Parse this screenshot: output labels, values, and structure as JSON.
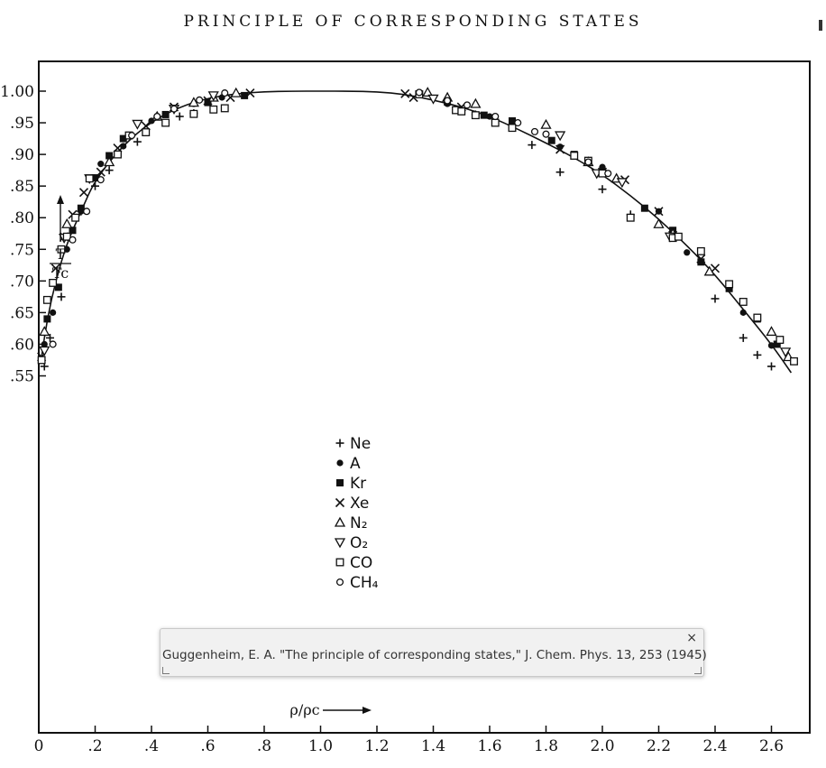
{
  "header": {
    "title": "PRINCIPLE OF CORRESPONDING STATES"
  },
  "tooltip": {
    "close_glyph": "×",
    "text": "Guggenheim, E. A. \"The principle of corresponding states,\" J. Chem. Phys. 13, 253 (1945)"
  },
  "chart_data": {
    "type": "scatter",
    "title": "",
    "xlabel": "ρ/ρc",
    "ylabel": "T/Tc",
    "xlim": [
      0,
      2.75
    ],
    "ylim": [
      0.55,
      1.02
    ],
    "grid": false,
    "legend_position": "center",
    "x_ticks": [
      {
        "value": 0.0,
        "label": "0"
      },
      {
        "value": 0.2,
        "label": ".2"
      },
      {
        "value": 0.4,
        "label": ".4"
      },
      {
        "value": 0.6,
        "label": ".6"
      },
      {
        "value": 0.8,
        "label": ".8"
      },
      {
        "value": 1.0,
        "label": "1.0"
      },
      {
        "value": 1.2,
        "label": "1.2"
      },
      {
        "value": 1.4,
        "label": "1.4"
      },
      {
        "value": 1.6,
        "label": "1.6"
      },
      {
        "value": 1.8,
        "label": "1.8"
      },
      {
        "value": 2.0,
        "label": "2.0"
      },
      {
        "value": 2.2,
        "label": "2.2"
      },
      {
        "value": 2.4,
        "label": "2.4"
      },
      {
        "value": 2.6,
        "label": "2.6"
      }
    ],
    "y_ticks": [
      {
        "value": 0.55,
        "label": ".55"
      },
      {
        "value": 0.6,
        "label": ".60"
      },
      {
        "value": 0.65,
        "label": ".65"
      },
      {
        "value": 0.7,
        "label": ".70"
      },
      {
        "value": 0.75,
        "label": ".75"
      },
      {
        "value": 0.8,
        "label": ".80"
      },
      {
        "value": 0.85,
        "label": ".85"
      },
      {
        "value": 0.9,
        "label": ".90"
      },
      {
        "value": 0.95,
        "label": ".95"
      },
      {
        "value": 1.0,
        "label": "1.00"
      }
    ],
    "fitted_curve": {
      "x": [
        0.01,
        0.03,
        0.06,
        0.1,
        0.15,
        0.2,
        0.3,
        0.4,
        0.5,
        0.6,
        0.7,
        0.8,
        0.9,
        1.0,
        1.1,
        1.2,
        1.3,
        1.4,
        1.5,
        1.6,
        1.7,
        1.8,
        1.9,
        2.0,
        2.1,
        2.2,
        2.3,
        2.4,
        2.5,
        2.6,
        2.67
      ],
      "y": [
        0.58,
        0.64,
        0.7,
        0.76,
        0.81,
        0.86,
        0.915,
        0.952,
        0.975,
        0.989,
        0.996,
        0.999,
        1.0,
        1.0,
        1.0,
        0.999,
        0.995,
        0.986,
        0.975,
        0.96,
        0.94,
        0.918,
        0.895,
        0.868,
        0.835,
        0.798,
        0.756,
        0.71,
        0.655,
        0.6,
        0.555
      ]
    },
    "series": [
      {
        "name": "Ne",
        "symbol": "plus",
        "x": [
          0.02,
          0.04,
          0.08,
          0.15,
          0.2,
          0.25,
          0.35,
          0.5,
          0.55,
          1.55,
          1.75,
          1.85,
          2.0,
          2.1,
          2.25,
          2.4,
          2.5,
          2.55,
          2.6
        ],
        "y": [
          0.565,
          0.61,
          0.675,
          0.81,
          0.85,
          0.875,
          0.92,
          0.96,
          0.965,
          0.963,
          0.915,
          0.872,
          0.845,
          0.805,
          0.77,
          0.672,
          0.61,
          0.583,
          0.565
        ]
      },
      {
        "name": "A",
        "symbol": "dot",
        "x": [
          0.02,
          0.05,
          0.1,
          0.15,
          0.22,
          0.3,
          0.4,
          0.55,
          0.65,
          1.45,
          1.6,
          1.7,
          1.85,
          2.0,
          2.2,
          2.3,
          2.45,
          2.5,
          2.6
        ],
        "y": [
          0.6,
          0.65,
          0.75,
          0.81,
          0.885,
          0.913,
          0.953,
          0.98,
          0.99,
          0.98,
          0.96,
          0.95,
          0.912,
          0.88,
          0.81,
          0.745,
          0.69,
          0.65,
          0.598
        ]
      },
      {
        "name": "Kr",
        "symbol": "square",
        "x": [
          0.03,
          0.07,
          0.12,
          0.15,
          0.2,
          0.25,
          0.3,
          0.45,
          0.6,
          0.73,
          1.45,
          1.58,
          1.68,
          1.82,
          1.9,
          2.15,
          2.25,
          2.35,
          2.45,
          2.55,
          2.62
        ],
        "y": [
          0.64,
          0.69,
          0.78,
          0.815,
          0.863,
          0.898,
          0.925,
          0.963,
          0.982,
          0.993,
          0.983,
          0.962,
          0.953,
          0.922,
          0.9,
          0.815,
          0.78,
          0.73,
          0.688,
          0.64,
          0.6
        ]
      },
      {
        "name": "Xe",
        "symbol": "cross",
        "x": [
          0.01,
          0.06,
          0.09,
          0.12,
          0.16,
          0.22,
          0.28,
          0.38,
          0.48,
          0.6,
          0.68,
          0.75,
          1.3,
          1.33,
          1.5,
          1.85,
          2.0,
          2.08,
          2.2,
          2.25,
          2.35,
          2.4
        ],
        "y": [
          0.58,
          0.72,
          0.77,
          0.805,
          0.84,
          0.872,
          0.91,
          0.945,
          0.975,
          0.985,
          0.99,
          0.997,
          0.996,
          0.99,
          0.975,
          0.908,
          0.872,
          0.86,
          0.81,
          0.772,
          0.735,
          0.72
        ]
      },
      {
        "name": "N₂",
        "symbol": "triangle-up",
        "x": [
          0.02,
          0.1,
          0.25,
          0.42,
          0.55,
          0.62,
          0.7,
          1.38,
          1.45,
          1.55,
          1.8,
          1.95,
          2.05,
          2.2,
          2.25,
          2.38,
          2.6,
          2.66
        ],
        "y": [
          0.62,
          0.79,
          0.888,
          0.96,
          0.982,
          0.99,
          0.997,
          0.998,
          0.99,
          0.98,
          0.947,
          0.888,
          0.862,
          0.79,
          0.775,
          0.715,
          0.62,
          0.58
        ]
      },
      {
        "name": "O₂",
        "symbol": "triangle-down",
        "x": [
          0.02,
          0.09,
          0.18,
          0.35,
          0.48,
          0.62,
          1.4,
          1.85,
          1.98,
          2.07,
          2.24,
          2.65
        ],
        "y": [
          0.59,
          0.768,
          0.862,
          0.948,
          0.972,
          0.993,
          0.988,
          0.93,
          0.87,
          0.856,
          0.77,
          0.588
        ]
      },
      {
        "name": "CO",
        "symbol": "square-open",
        "x": [
          0.01,
          0.03,
          0.05,
          0.08,
          0.1,
          0.13,
          0.18,
          0.28,
          0.32,
          0.38,
          0.45,
          0.55,
          0.62,
          0.66,
          1.35,
          1.48,
          1.5,
          1.55,
          1.62,
          1.68,
          1.9,
          1.95,
          2.0,
          2.1,
          2.25,
          2.27,
          2.35,
          2.45,
          2.5,
          2.55,
          2.63,
          2.68
        ],
        "y": [
          0.575,
          0.67,
          0.697,
          0.75,
          0.77,
          0.8,
          0.862,
          0.9,
          0.93,
          0.935,
          0.95,
          0.964,
          0.971,
          0.973,
          0.995,
          0.97,
          0.968,
          0.962,
          0.95,
          0.942,
          0.898,
          0.89,
          0.87,
          0.8,
          0.768,
          0.77,
          0.747,
          0.695,
          0.667,
          0.642,
          0.607,
          0.573
        ]
      },
      {
        "name": "CH₄",
        "symbol": "circle-open",
        "x": [
          0.05,
          0.12,
          0.17,
          0.22,
          0.33,
          0.42,
          0.48,
          0.57,
          0.66,
          1.35,
          1.45,
          1.52,
          1.62,
          1.7,
          1.76,
          1.8,
          1.95,
          2.02
        ],
        "y": [
          0.6,
          0.765,
          0.81,
          0.86,
          0.93,
          0.96,
          0.972,
          0.986,
          0.997,
          0.998,
          0.985,
          0.978,
          0.96,
          0.95,
          0.936,
          0.932,
          0.888,
          0.87
        ]
      }
    ]
  }
}
